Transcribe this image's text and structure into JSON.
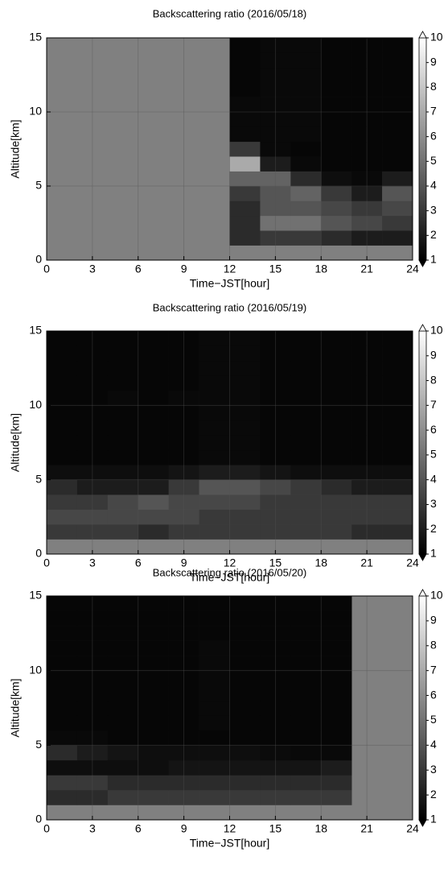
{
  "chart_data": [
    {
      "type": "heatmap",
      "title": "Backscattering ratio (2016/05/18)",
      "x_label": "Time−JST[hour]",
      "y_label": "Altitude[km]",
      "x": [
        1,
        3,
        5,
        7,
        9,
        11,
        13,
        15,
        17,
        19,
        21,
        23
      ],
      "y": [
        1.5,
        2.5,
        3.5,
        4.5,
        5.5,
        6.5,
        7.5,
        8.5,
        9.5,
        10.5,
        11.5,
        12.5,
        13.5,
        14.5
      ],
      "z": [
        [
          null,
          null,
          null,
          null,
          null,
          null,
          2.5,
          3,
          3,
          2.5,
          2,
          2
        ],
        [
          null,
          null,
          null,
          null,
          null,
          null,
          2.5,
          5,
          5,
          4,
          3.5,
          3
        ],
        [
          null,
          null,
          null,
          null,
          null,
          null,
          2.5,
          4,
          4,
          3.5,
          3,
          3.5
        ],
        [
          null,
          null,
          null,
          null,
          null,
          null,
          3,
          4,
          4.5,
          3,
          2,
          4
        ],
        [
          null,
          null,
          null,
          null,
          null,
          null,
          4.5,
          4.5,
          2.5,
          1.5,
          1.3,
          2
        ],
        [
          null,
          null,
          null,
          null,
          null,
          null,
          7,
          2,
          1.3,
          1.2,
          1.2,
          1.2
        ],
        [
          null,
          null,
          null,
          null,
          null,
          null,
          3,
          1.3,
          1.2,
          1.2,
          1.2,
          1.2
        ],
        [
          null,
          null,
          null,
          null,
          null,
          null,
          1.3,
          1.3,
          1.3,
          1.2,
          1.2,
          1.2
        ],
        [
          null,
          null,
          null,
          null,
          null,
          null,
          1.3,
          1.3,
          1.3,
          1.2,
          1.2,
          1.2
        ],
        [
          null,
          null,
          null,
          null,
          null,
          null,
          1.3,
          1.3,
          1.3,
          1.2,
          1.2,
          1.2
        ],
        [
          null,
          null,
          null,
          null,
          null,
          null,
          1.2,
          1.3,
          1.3,
          1.2,
          1.2,
          1.2
        ],
        [
          null,
          null,
          null,
          null,
          null,
          null,
          1.2,
          1.3,
          1.3,
          1.2,
          1.2,
          1.2
        ],
        [
          null,
          null,
          null,
          null,
          null,
          null,
          1.2,
          1.3,
          1.3,
          1.2,
          1.2,
          1.2
        ],
        [
          null,
          null,
          null,
          null,
          null,
          null,
          1.2,
          1.3,
          1.3,
          1.2,
          1.2,
          1.2
        ]
      ],
      "xlim": [
        0,
        24
      ],
      "xticks": [
        0,
        3,
        6,
        9,
        12,
        15,
        18,
        21,
        24
      ],
      "ylim": [
        0,
        15
      ],
      "yticks": [
        0,
        5,
        10,
        15
      ],
      "clim": [
        1,
        10
      ],
      "cticks": [
        1,
        2,
        3,
        4,
        5,
        6,
        7,
        8,
        9,
        10
      ],
      "colormap": [
        "#000000",
        "#ffffff"
      ],
      "missing_color": "#808080",
      "grid": true
    },
    {
      "type": "heatmap",
      "title": "Backscattering ratio (2016/05/19)",
      "x_label": "Time−JST[hour]",
      "y_label": "Altitude[km]",
      "x": [
        1,
        3,
        5,
        7,
        9,
        11,
        13,
        15,
        17,
        19,
        21,
        23
      ],
      "y": [
        1.5,
        2.5,
        3.5,
        4.5,
        5.5,
        6.5,
        7.5,
        8.5,
        9.5,
        10.5,
        11.5,
        12.5,
        13.5,
        14.5
      ],
      "z": [
        [
          3,
          3,
          3,
          2.5,
          3,
          3,
          3,
          3,
          3,
          3,
          2.5,
          2.5
        ],
        [
          3.5,
          3.5,
          3.5,
          3.5,
          3.5,
          3,
          3,
          3,
          3,
          3,
          3,
          3
        ],
        [
          3,
          3,
          3.5,
          4,
          3.5,
          3.5,
          3.5,
          3,
          3,
          3,
          3,
          3
        ],
        [
          2.5,
          2,
          2,
          2,
          3,
          4,
          4,
          3.5,
          3,
          2.5,
          2,
          2
        ],
        [
          1.5,
          1.5,
          1.5,
          1.5,
          1.7,
          2,
          2,
          1.7,
          1.5,
          1.5,
          1.5,
          1.5
        ],
        [
          1.2,
          1.2,
          1.2,
          1.2,
          1.2,
          1.3,
          1.3,
          1.2,
          1.2,
          1.2,
          1.2,
          1.2
        ],
        [
          1.2,
          1.2,
          1.2,
          1.2,
          1.2,
          1.3,
          1.3,
          1.2,
          1.2,
          1.2,
          1.2,
          1.2
        ],
        [
          1.2,
          1.2,
          1.2,
          1.2,
          1.2,
          1.3,
          1.3,
          1.2,
          1.2,
          1.2,
          1.2,
          1.2
        ],
        [
          1.2,
          1.2,
          1.2,
          1.2,
          1.2,
          1.3,
          1.3,
          1.2,
          1.2,
          1.2,
          1.2,
          1.2
        ],
        [
          1.2,
          1.2,
          1.3,
          1.2,
          1.3,
          1.3,
          1.3,
          1.2,
          1.2,
          1.2,
          1.2,
          1.2
        ],
        [
          1.2,
          1.2,
          1.2,
          1.2,
          1.2,
          1.3,
          1.3,
          1.2,
          1.2,
          1.2,
          1.2,
          1.2
        ],
        [
          1.2,
          1.2,
          1.2,
          1.2,
          1.2,
          1.3,
          1.3,
          1.2,
          1.2,
          1.2,
          1.2,
          1.2
        ],
        [
          1.2,
          1.2,
          1.2,
          1.2,
          1.2,
          1.3,
          1.3,
          1.2,
          1.2,
          1.2,
          1.2,
          1.2
        ],
        [
          1.2,
          1.2,
          1.2,
          1.2,
          1.2,
          1.3,
          1.3,
          1.2,
          1.2,
          1.2,
          1.2,
          1.2
        ]
      ],
      "xlim": [
        0,
        24
      ],
      "xticks": [
        0,
        3,
        6,
        9,
        12,
        15,
        18,
        21,
        24
      ],
      "ylim": [
        0,
        15
      ],
      "yticks": [
        0,
        5,
        10,
        15
      ],
      "clim": [
        1,
        10
      ],
      "cticks": [
        1,
        2,
        3,
        4,
        5,
        6,
        7,
        8,
        9,
        10
      ],
      "colormap": [
        "#000000",
        "#ffffff"
      ],
      "missing_color": "#808080",
      "grid": true
    },
    {
      "type": "heatmap",
      "title": "Backscattering ratio (2016/05/20)",
      "x_label": "Time−JST[hour]",
      "y_label": "Altitude[km]",
      "x": [
        1,
        3,
        5,
        7,
        9,
        11,
        13,
        15,
        17,
        19,
        21,
        23
      ],
      "y": [
        1.5,
        2.5,
        3.5,
        4.5,
        5.5,
        6.5,
        7.5,
        8.5,
        9.5,
        10.5,
        11.5,
        12.5,
        13.5,
        14.5
      ],
      "z": [
        [
          2.5,
          2.5,
          3,
          3,
          3,
          3,
          3,
          3,
          3,
          3,
          null,
          null
        ],
        [
          3,
          3,
          2.5,
          2.5,
          2.5,
          2.5,
          2.5,
          2.5,
          2.5,
          2.5,
          null,
          null
        ],
        [
          1.5,
          1.5,
          1.5,
          1.5,
          1.7,
          1.7,
          1.7,
          1.7,
          1.7,
          2,
          null,
          null
        ],
        [
          2.5,
          2,
          1.7,
          1.5,
          1.5,
          1.5,
          1.5,
          1.4,
          1.3,
          1.3,
          null,
          null
        ],
        [
          1.3,
          1.3,
          1.2,
          1.2,
          1.2,
          1.2,
          1.2,
          1.2,
          1.2,
          1.2,
          null,
          null
        ],
        [
          1.2,
          1.2,
          1.2,
          1.2,
          1.2,
          1.3,
          1.2,
          1.2,
          1.2,
          1.2,
          null,
          null
        ],
        [
          1.2,
          1.2,
          1.2,
          1.2,
          1.2,
          1.3,
          1.2,
          1.2,
          1.2,
          1.2,
          null,
          null
        ],
        [
          1.2,
          1.2,
          1.2,
          1.2,
          1.2,
          1.3,
          1.2,
          1.2,
          1.2,
          1.2,
          null,
          null
        ],
        [
          1.2,
          1.2,
          1.2,
          1.2,
          1.2,
          1.3,
          1.2,
          1.2,
          1.2,
          1.2,
          null,
          null
        ],
        [
          1.2,
          1.2,
          1.2,
          1.2,
          1.2,
          1.3,
          1.2,
          1.2,
          1.2,
          1.2,
          null,
          null
        ],
        [
          1.2,
          1.2,
          1.2,
          1.2,
          1.2,
          1.3,
          1.2,
          1.2,
          1.2,
          1.2,
          null,
          null
        ],
        [
          1.2,
          1.2,
          1.2,
          1.2,
          1.2,
          1.2,
          1.2,
          1.2,
          1.2,
          1.2,
          null,
          null
        ],
        [
          1.2,
          1.2,
          1.2,
          1.2,
          1.2,
          1.2,
          1.2,
          1.2,
          1.2,
          1.2,
          null,
          null
        ],
        [
          1.2,
          1.2,
          1.2,
          1.2,
          1.2,
          1.2,
          1.2,
          1.2,
          1.2,
          1.2,
          null,
          null
        ]
      ],
      "xlim": [
        0,
        24
      ],
      "xticks": [
        0,
        3,
        6,
        9,
        12,
        15,
        18,
        21,
        24
      ],
      "ylim": [
        0,
        15
      ],
      "yticks": [
        0,
        5,
        10,
        15
      ],
      "clim": [
        1,
        10
      ],
      "cticks": [
        1,
        2,
        3,
        4,
        5,
        6,
        7,
        8,
        9,
        10
      ],
      "colormap": [
        "#000000",
        "#ffffff"
      ],
      "missing_color": "#808080",
      "grid": true
    }
  ]
}
